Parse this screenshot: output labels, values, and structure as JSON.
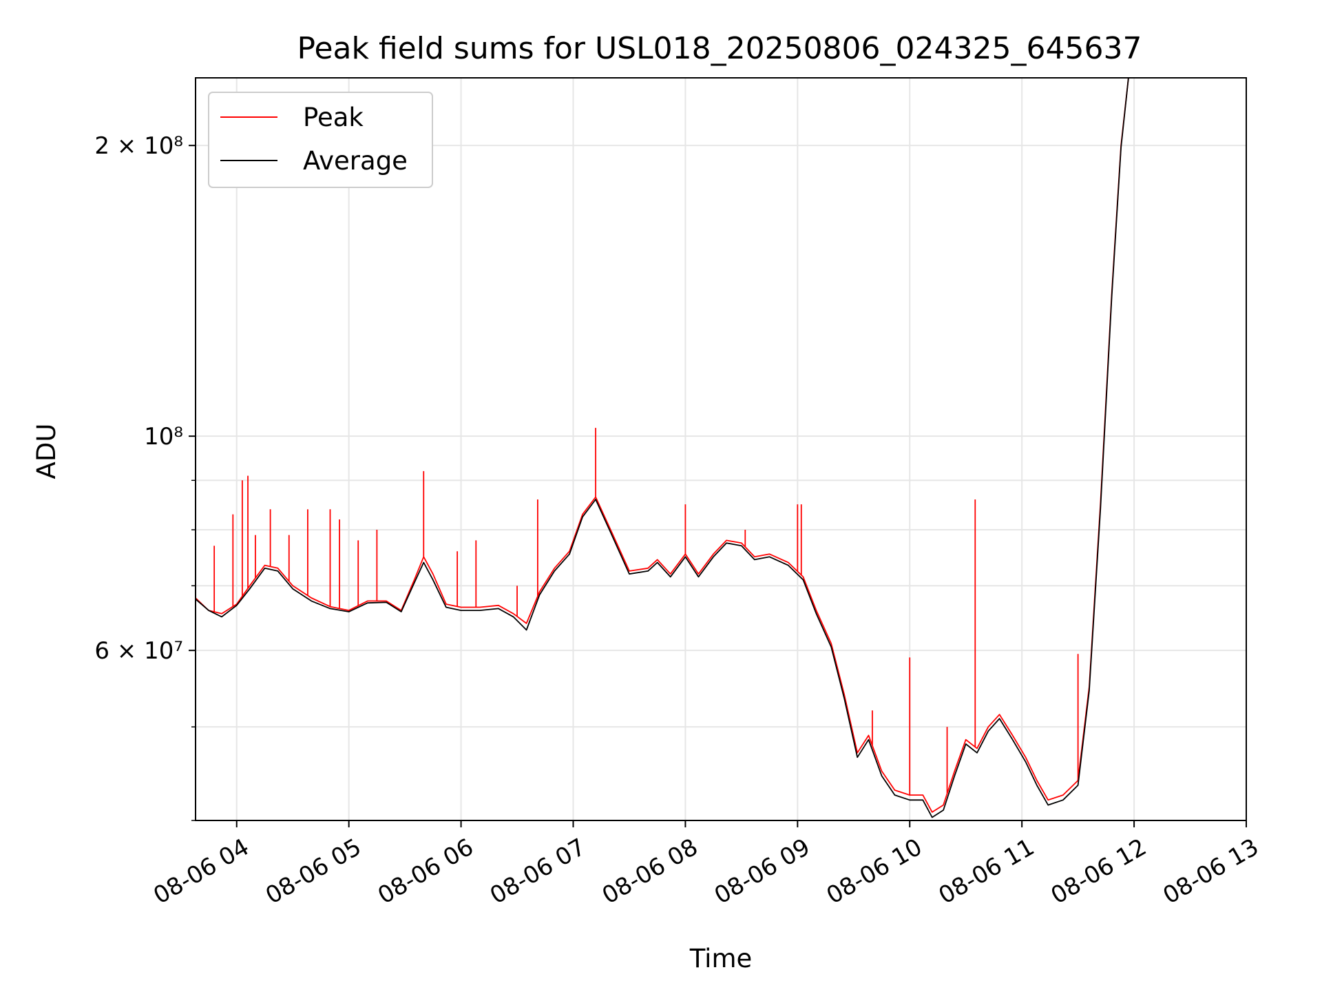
{
  "chart_data": {
    "type": "line",
    "title": "Peak field sums for USL018_20250806_024325_645637",
    "xlabel": "Time",
    "ylabel": "ADU",
    "y_scale": "log",
    "grid": true,
    "legend_position": "top-left",
    "x_ticks": [
      "08-06 04",
      "08-06 05",
      "08-06 06",
      "08-06 07",
      "08-06 08",
      "08-06 09",
      "08-06 10",
      "08-06 11",
      "08-06 12",
      "08-06 13"
    ],
    "y_ticks": [
      {
        "value": 60000000,
        "label": "6 × 10⁷"
      },
      {
        "value": 100000000,
        "label": "10⁸"
      },
      {
        "value": 200000000,
        "label": "2 × 10⁸"
      }
    ],
    "xlim": [
      "08-06 03:38",
      "08-06 13:00"
    ],
    "ylim": [
      40000000,
      235000000
    ],
    "series": [
      {
        "name": "Peak",
        "color": "#ff0000",
        "points": [
          [
            "08-06 03:38",
            68000000
          ],
          [
            "08-06 03:45",
            66000000
          ],
          [
            "08-06 03:52",
            65500000
          ],
          [
            "08-06 04:00",
            67000000
          ],
          [
            "08-06 04:07",
            70000000
          ],
          [
            "08-06 04:15",
            73500000
          ],
          [
            "08-06 04:22",
            73000000
          ],
          [
            "08-06 04:30",
            70000000
          ],
          [
            "08-06 04:40",
            68000000
          ],
          [
            "08-06 04:50",
            66600000
          ],
          [
            "08-06 05:00",
            66000000
          ],
          [
            "08-06 05:10",
            67500000
          ],
          [
            "08-06 05:20",
            67500000
          ],
          [
            "08-06 05:28",
            66000000
          ],
          [
            "08-06 05:35",
            71000000
          ],
          [
            "08-06 05:40",
            75000000
          ],
          [
            "08-06 05:45",
            72000000
          ],
          [
            "08-06 05:52",
            67000000
          ],
          [
            "08-06 06:00",
            66500000
          ],
          [
            "08-06 06:10",
            66500000
          ],
          [
            "08-06 06:20",
            66800000
          ],
          [
            "08-06 06:28",
            65500000
          ],
          [
            "08-06 06:35",
            64000000
          ],
          [
            "08-06 06:42",
            69000000
          ],
          [
            "08-06 06:50",
            73000000
          ],
          [
            "08-06 06:58",
            76000000
          ],
          [
            "08-06 07:05",
            83000000
          ],
          [
            "08-06 07:12",
            86500000
          ],
          [
            "08-06 07:20",
            80000000
          ],
          [
            "08-06 07:30",
            72500000
          ],
          [
            "08-06 07:40",
            73000000
          ],
          [
            "08-06 07:45",
            74500000
          ],
          [
            "08-06 07:52",
            72000000
          ],
          [
            "08-06 08:00",
            75500000
          ],
          [
            "08-06 08:07",
            72000000
          ],
          [
            "08-06 08:15",
            75500000
          ],
          [
            "08-06 08:22",
            78000000
          ],
          [
            "08-06 08:30",
            77500000
          ],
          [
            "08-06 08:37",
            75000000
          ],
          [
            "08-06 08:45",
            75500000
          ],
          [
            "08-06 08:55",
            74000000
          ],
          [
            "08-06 09:03",
            71500000
          ],
          [
            "08-06 09:10",
            66000000
          ],
          [
            "08-06 09:18",
            61000000
          ],
          [
            "08-06 09:25",
            54000000
          ],
          [
            "08-06 09:32",
            47000000
          ],
          [
            "08-06 09:38",
            49000000
          ],
          [
            "08-06 09:45",
            45000000
          ],
          [
            "08-06 09:52",
            43000000
          ],
          [
            "08-06 10:00",
            42500000
          ],
          [
            "08-06 10:07",
            42500000
          ],
          [
            "08-06 10:12",
            40800000
          ],
          [
            "08-06 10:18",
            41500000
          ],
          [
            "08-06 10:24",
            45000000
          ],
          [
            "08-06 10:30",
            48500000
          ],
          [
            "08-06 10:36",
            47500000
          ],
          [
            "08-06 10:42",
            50000000
          ],
          [
            "08-06 10:48",
            51500000
          ],
          [
            "08-06 10:55",
            49000000
          ],
          [
            "08-06 11:02",
            46500000
          ],
          [
            "08-06 11:08",
            44000000
          ],
          [
            "08-06 11:14",
            42000000
          ],
          [
            "08-06 11:22",
            42500000
          ],
          [
            "08-06 11:30",
            44000000
          ],
          [
            "08-06 11:36",
            55000000
          ],
          [
            "08-06 11:42",
            85000000
          ],
          [
            "08-06 11:48",
            140000000
          ],
          [
            "08-06 11:53",
            200000000
          ],
          [
            "08-06 11:57",
            235000000
          ]
        ],
        "spikes": [
          [
            "08-06 03:48",
            77000000
          ],
          [
            "08-06 03:58",
            83000000
          ],
          [
            "08-06 04:03",
            90000000
          ],
          [
            "08-06 04:06",
            91000000
          ],
          [
            "08-06 04:10",
            79000000
          ],
          [
            "08-06 04:18",
            84000000
          ],
          [
            "08-06 04:28",
            79000000
          ],
          [
            "08-06 04:38",
            84000000
          ],
          [
            "08-06 04:50",
            84000000
          ],
          [
            "08-06 04:55",
            82000000
          ],
          [
            "08-06 05:05",
            78000000
          ],
          [
            "08-06 05:15",
            80000000
          ],
          [
            "08-06 05:40",
            92000000
          ],
          [
            "08-06 05:58",
            76000000
          ],
          [
            "08-06 06:08",
            78000000
          ],
          [
            "08-06 06:30",
            70000000
          ],
          [
            "08-06 06:41",
            86000000
          ],
          [
            "08-06 07:12",
            102000000
          ],
          [
            "08-06 08:00",
            85000000
          ],
          [
            "08-06 08:32",
            80000000
          ],
          [
            "08-06 09:00",
            85000000
          ],
          [
            "08-06 09:02",
            85000000
          ],
          [
            "08-06 09:40",
            52000000
          ],
          [
            "08-06 10:00",
            59000000
          ],
          [
            "08-06 10:20",
            50000000
          ],
          [
            "08-06 10:35",
            86000000
          ],
          [
            "08-06 11:30",
            59500000
          ]
        ]
      },
      {
        "name": "Average",
        "color": "#000000",
        "points": [
          [
            "08-06 03:38",
            67800000
          ],
          [
            "08-06 03:45",
            66000000
          ],
          [
            "08-06 03:52",
            65000000
          ],
          [
            "08-06 04:00",
            66800000
          ],
          [
            "08-06 04:07",
            69500000
          ],
          [
            "08-06 04:15",
            73000000
          ],
          [
            "08-06 04:22",
            72500000
          ],
          [
            "08-06 04:30",
            69500000
          ],
          [
            "08-06 04:40",
            67500000
          ],
          [
            "08-06 04:50",
            66300000
          ],
          [
            "08-06 05:00",
            65800000
          ],
          [
            "08-06 05:10",
            67200000
          ],
          [
            "08-06 05:20",
            67300000
          ],
          [
            "08-06 05:28",
            65800000
          ],
          [
            "08-06 05:35",
            70500000
          ],
          [
            "08-06 05:40",
            74000000
          ],
          [
            "08-06 05:45",
            71000000
          ],
          [
            "08-06 05:52",
            66500000
          ],
          [
            "08-06 06:00",
            66000000
          ],
          [
            "08-06 06:10",
            66000000
          ],
          [
            "08-06 06:20",
            66300000
          ],
          [
            "08-06 06:28",
            65000000
          ],
          [
            "08-06 06:35",
            63000000
          ],
          [
            "08-06 06:42",
            68500000
          ],
          [
            "08-06 06:50",
            72500000
          ],
          [
            "08-06 06:58",
            75500000
          ],
          [
            "08-06 07:05",
            82500000
          ],
          [
            "08-06 07:12",
            86000000
          ],
          [
            "08-06 07:20",
            79500000
          ],
          [
            "08-06 07:30",
            72000000
          ],
          [
            "08-06 07:40",
            72500000
          ],
          [
            "08-06 07:45",
            74000000
          ],
          [
            "08-06 07:52",
            71500000
          ],
          [
            "08-06 08:00",
            75000000
          ],
          [
            "08-06 08:07",
            71500000
          ],
          [
            "08-06 08:15",
            75000000
          ],
          [
            "08-06 08:22",
            77500000
          ],
          [
            "08-06 08:30",
            77000000
          ],
          [
            "08-06 08:37",
            74500000
          ],
          [
            "08-06 08:45",
            75000000
          ],
          [
            "08-06 08:55",
            73500000
          ],
          [
            "08-06 09:03",
            71000000
          ],
          [
            "08-06 09:10",
            65500000
          ],
          [
            "08-06 09:18",
            60500000
          ],
          [
            "08-06 09:25",
            53500000
          ],
          [
            "08-06 09:32",
            46500000
          ],
          [
            "08-06 09:38",
            48500000
          ],
          [
            "08-06 09:45",
            44500000
          ],
          [
            "08-06 09:52",
            42500000
          ],
          [
            "08-06 10:00",
            42000000
          ],
          [
            "08-06 10:07",
            42000000
          ],
          [
            "08-06 10:12",
            40300000
          ],
          [
            "08-06 10:18",
            41000000
          ],
          [
            "08-06 10:24",
            44500000
          ],
          [
            "08-06 10:30",
            48000000
          ],
          [
            "08-06 10:36",
            47000000
          ],
          [
            "08-06 10:42",
            49500000
          ],
          [
            "08-06 10:48",
            51000000
          ],
          [
            "08-06 10:55",
            48500000
          ],
          [
            "08-06 11:02",
            46000000
          ],
          [
            "08-06 11:08",
            43500000
          ],
          [
            "08-06 11:14",
            41500000
          ],
          [
            "08-06 11:22",
            42000000
          ],
          [
            "08-06 11:30",
            43500000
          ],
          [
            "08-06 11:36",
            54500000
          ],
          [
            "08-06 11:42",
            84000000
          ],
          [
            "08-06 11:48",
            139000000
          ],
          [
            "08-06 11:53",
            199000000
          ],
          [
            "08-06 11:57",
            235000000
          ]
        ]
      }
    ]
  }
}
